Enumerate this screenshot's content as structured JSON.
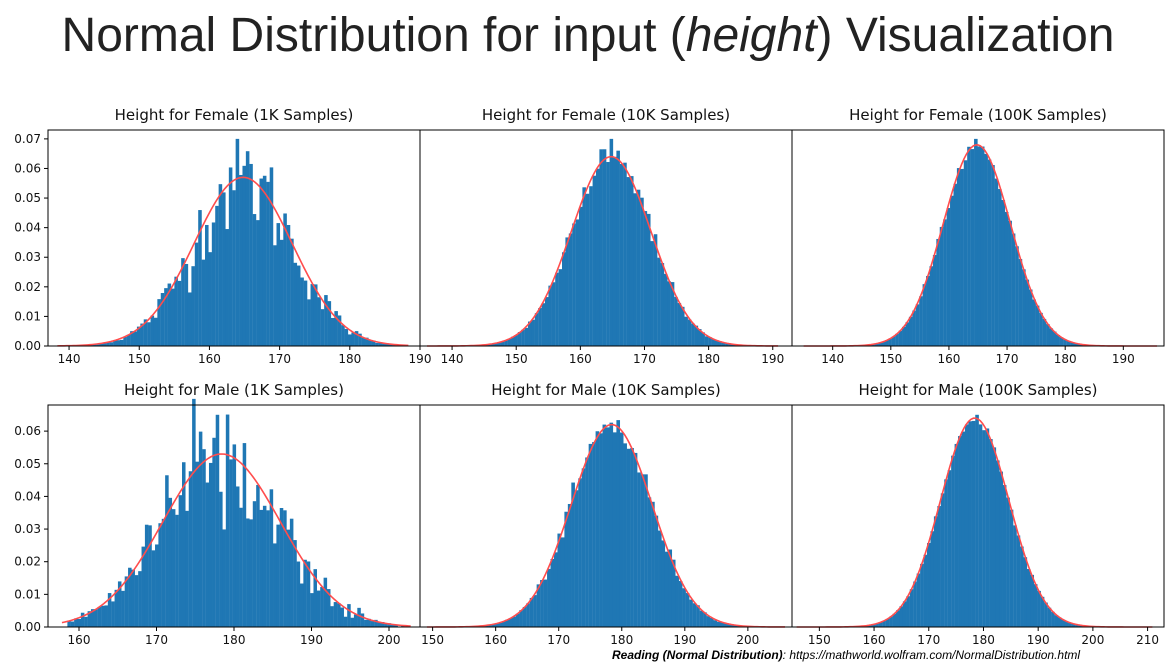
{
  "slide": {
    "title_prefix": "Normal Distribution for input (",
    "title_emph": "height",
    "title_suffix": ") Visualization",
    "footer_label": "Reading (Normal Distribution)",
    "footer_sep": ": ",
    "footer_url": "https://mathworld.wolfram.com/NormalDistribution.html"
  },
  "colors": {
    "bars": "#1f77b4",
    "curve": "#ff4d4d",
    "axes": "#000000"
  },
  "chart_data": [
    {
      "type": "bar",
      "title": "Height for Female (1K Samples)",
      "mean": 164.8,
      "sd": 7.0,
      "samples": 1000,
      "bins": 100,
      "xlim": [
        137,
        190
      ],
      "ylim": [
        0,
        0.073
      ],
      "xticks": [
        140,
        150,
        160,
        170,
        180,
        190
      ],
      "yticks": [
        0,
        0.01,
        0.02,
        0.03,
        0.04,
        0.05,
        0.06,
        0.07
      ],
      "data_min": 139,
      "data_max": 187.5,
      "peak_value": 0.07,
      "curve_peak": 0.057
    },
    {
      "type": "bar",
      "title": "Height for Female (10K Samples)",
      "mean": 164.8,
      "sd": 6.2,
      "samples": 10000,
      "bins": 100,
      "xlim": [
        135,
        193
      ],
      "ylim": [
        0,
        0.073
      ],
      "xticks": [
        140,
        150,
        160,
        170,
        180,
        190
      ],
      "yticks": [],
      "data_min": 137,
      "data_max": 190,
      "peak_value": 0.07,
      "curve_peak": 0.064
    },
    {
      "type": "bar",
      "title": "Height for Female (100K Samples)",
      "mean": 164.8,
      "sd": 5.8,
      "samples": 100000,
      "bins": 100,
      "xlim": [
        133,
        197
      ],
      "ylim": [
        0,
        0.073
      ],
      "xticks": [
        140,
        150,
        160,
        170,
        180,
        190
      ],
      "yticks": [],
      "data_min": 136,
      "data_max": 195,
      "peak_value": 0.07,
      "curve_peak": 0.068
    },
    {
      "type": "bar",
      "title": "Height for Male (1K Samples)",
      "mean": 178.4,
      "sd": 7.6,
      "samples": 1000,
      "bins": 100,
      "xlim": [
        156,
        204
      ],
      "ylim": [
        0,
        0.068
      ],
      "xticks": [
        160,
        170,
        180,
        190,
        200
      ],
      "yticks": [
        0,
        0.01,
        0.02,
        0.03,
        0.04,
        0.05,
        0.06
      ],
      "data_min": 158.5,
      "data_max": 202,
      "peak_value": 0.065,
      "curve_peak": 0.053
    },
    {
      "type": "bar",
      "title": "Height for Male (10K Samples)",
      "mean": 178.4,
      "sd": 6.4,
      "samples": 10000,
      "bins": 100,
      "xlim": [
        148,
        207
      ],
      "ylim": [
        0,
        0.068
      ],
      "xticks": [
        150,
        160,
        170,
        180,
        190,
        200
      ],
      "yticks": [],
      "data_min": 150,
      "data_max": 205,
      "peak_value": 0.062,
      "curve_peak": 0.062
    },
    {
      "type": "bar",
      "title": "Height for Male (100K Samples)",
      "mean": 178.4,
      "sd": 6.25,
      "samples": 100000,
      "bins": 100,
      "xlim": [
        145,
        213
      ],
      "ylim": [
        0,
        0.068
      ],
      "xticks": [
        150,
        160,
        170,
        180,
        190,
        200,
        210
      ],
      "yticks": [],
      "data_min": 147,
      "data_max": 210,
      "peak_value": 0.065,
      "curve_peak": 0.064
    }
  ]
}
